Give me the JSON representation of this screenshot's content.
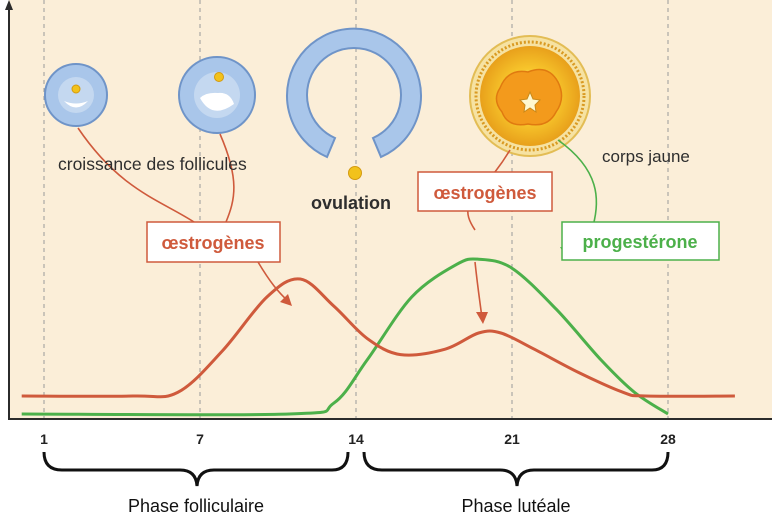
{
  "colors": {
    "background": "#fbeed8",
    "estrogen": "#cf5a3c",
    "progesterone": "#4cb04a",
    "follicle_fill": "#a9c6ea",
    "follicle_stroke": "#6f94c8",
    "corpus_luteum": "#f5b21b",
    "axis": "#2b2b2b"
  },
  "labels": {
    "croissance": "croissance des follicules",
    "ovulation": "ovulation",
    "corps_jaune": "corps jaune",
    "estrogenes_left": "œstrogènes",
    "estrogenes_right": "œstrogènes",
    "progesterone": "progestérone"
  },
  "phases": {
    "folliculaire": "Phase folliculaire",
    "luteale": "Phase lutéale"
  },
  "chart_data": {
    "type": "line",
    "x_ticks": [
      "1",
      "7",
      "14",
      "21",
      "28"
    ],
    "series": [
      {
        "name": "œstrogènes",
        "color": "#cf5a3c",
        "points": [
          [
            0,
            1
          ],
          [
            5,
            1
          ],
          [
            7,
            1.2
          ],
          [
            9,
            3.5
          ],
          [
            11,
            6.5
          ],
          [
            12.5,
            7.5
          ],
          [
            14,
            6
          ],
          [
            15.5,
            4.2
          ],
          [
            17,
            3.3
          ],
          [
            19,
            3.6
          ],
          [
            20.5,
            4.5
          ],
          [
            21.5,
            4.5
          ],
          [
            23,
            3.6
          ],
          [
            25,
            2.3
          ],
          [
            27,
            1.2
          ],
          [
            28,
            1
          ],
          [
            32,
            1
          ]
        ]
      },
      {
        "name": "progestérone",
        "color": "#4cb04a",
        "points": [
          [
            0,
            0
          ],
          [
            12,
            0
          ],
          [
            14,
            0.6
          ],
          [
            15.5,
            3
          ],
          [
            17.5,
            6.5
          ],
          [
            19.5,
            8.3
          ],
          [
            20.5,
            8.6
          ],
          [
            22,
            8.1
          ],
          [
            24,
            5.8
          ],
          [
            26,
            3
          ],
          [
            27.5,
            1.2
          ],
          [
            29,
            0
          ]
        ]
      }
    ]
  }
}
